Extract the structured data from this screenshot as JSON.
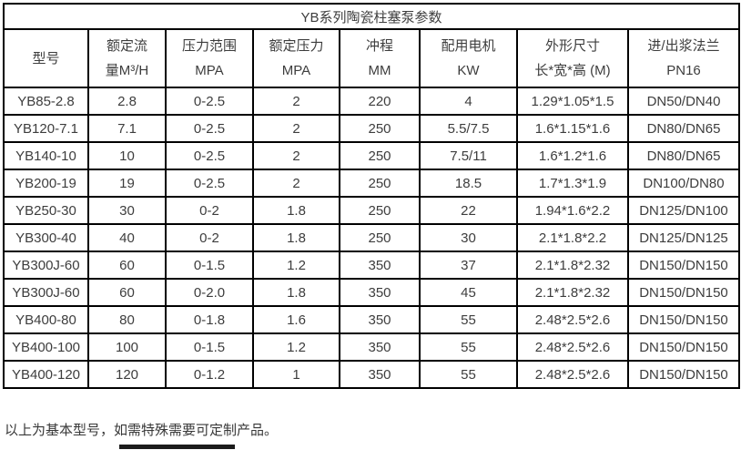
{
  "title": "YB系列陶瓷柱塞泵参数",
  "columns": [
    {
      "key": "model",
      "line1": "型号",
      "line2": ""
    },
    {
      "key": "flow",
      "line1": "额定流",
      "line2": "量M³/H"
    },
    {
      "key": "pressure_range",
      "line1": "压力范围",
      "line2": "MPA"
    },
    {
      "key": "rated_pressure",
      "line1": "额定压力",
      "line2": "MPA"
    },
    {
      "key": "stroke",
      "line1": "冲程",
      "line2": "MM"
    },
    {
      "key": "motor",
      "line1": "配用电机",
      "line2": "KW"
    },
    {
      "key": "dimensions",
      "line1": "外形尺寸",
      "line2": "长*宽*高 (M)"
    },
    {
      "key": "flange",
      "line1": "进/出浆法兰",
      "line2": "PN16"
    }
  ],
  "rows": [
    [
      "YB85-2.8",
      "2.8",
      "0-2.5",
      "2",
      "220",
      "4",
      "1.29*1.05*1.5",
      "DN50/DN40"
    ],
    [
      "YB120-7.1",
      "7.1",
      "0-2.5",
      "2",
      "250",
      "5.5/7.5",
      "1.6*1.15*1.6",
      "DN80/DN65"
    ],
    [
      "YB140-10",
      "10",
      "0-2.5",
      "2",
      "250",
      "7.5/11",
      "1.6*1.2*1.6",
      "DN80/DN65"
    ],
    [
      "YB200-19",
      "19",
      "0-2.5",
      "2",
      "250",
      "18.5",
      "1.7*1.3*1.9",
      "DN100/DN80"
    ],
    [
      "YB250-30",
      "30",
      "0-2",
      "1.8",
      "250",
      "22",
      "1.94*1.6*2.2",
      "DN125/DN100"
    ],
    [
      "YB300-40",
      "40",
      "0-2",
      "1.8",
      "250",
      "30",
      "2.1*1.8*2.2",
      "DN125/DN125"
    ],
    [
      "YB300J-60",
      "60",
      "0-1.5",
      "1.2",
      "350",
      "37",
      "2.1*1.8*2.32",
      "DN150/DN150"
    ],
    [
      "YB300J-60",
      "60",
      "0-2.0",
      "1.8",
      "350",
      "45",
      "2.1*1.8*2.32",
      "DN150/DN150"
    ],
    [
      "YB400-80",
      "80",
      "0-1.8",
      "1.6",
      "350",
      "55",
      "2.48*2.5*2.6",
      "DN150/DN150"
    ],
    [
      "YB400-100",
      "100",
      "0-1.5",
      "1.2",
      "350",
      "55",
      "2.48*2.5*2.6",
      "DN150/DN150"
    ],
    [
      "YB400-120",
      "120",
      "0-1.2",
      "1",
      "350",
      "55",
      "2.48*2.5*2.6",
      "DN150/DN150"
    ]
  ],
  "footer_note": "以上为基本型号，如需特殊需要可定制产品。",
  "colors": {
    "border": "#000000",
    "text": "#3d3d3d",
    "background": "#ffffff",
    "bottom_bar": "#1c1c1c"
  }
}
